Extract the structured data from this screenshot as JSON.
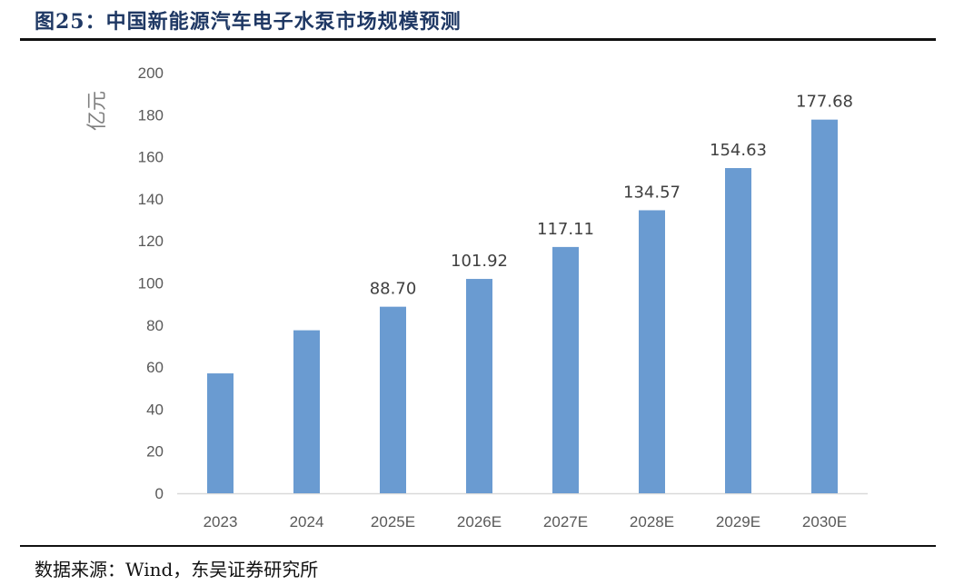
{
  "header": {
    "title": "图25：中国新能源汽车电子水泵市场规模预测"
  },
  "footer": {
    "source": "数据来源：Wind，东吴证券研究所"
  },
  "colors": {
    "bar": "#6a9bd1",
    "axis": "#d9d9d9",
    "title": "#1f3864"
  },
  "chart_data": {
    "type": "bar",
    "title": "",
    "ylabel": "亿元",
    "xlabel": "",
    "ylim": [
      0,
      200
    ],
    "yticks": [
      0,
      20,
      40,
      60,
      80,
      100,
      120,
      140,
      160,
      180,
      200
    ],
    "grid": false,
    "categories": [
      "2023",
      "2024",
      "2025E",
      "2026E",
      "2027E",
      "2028E",
      "2029E",
      "2030E"
    ],
    "values": [
      57,
      77.5,
      88.7,
      101.92,
      117.11,
      134.57,
      154.63,
      177.68
    ],
    "data_labels": [
      "",
      "",
      "88.70",
      "101.92",
      "117.11",
      "134.57",
      "154.63",
      "177.68"
    ]
  }
}
